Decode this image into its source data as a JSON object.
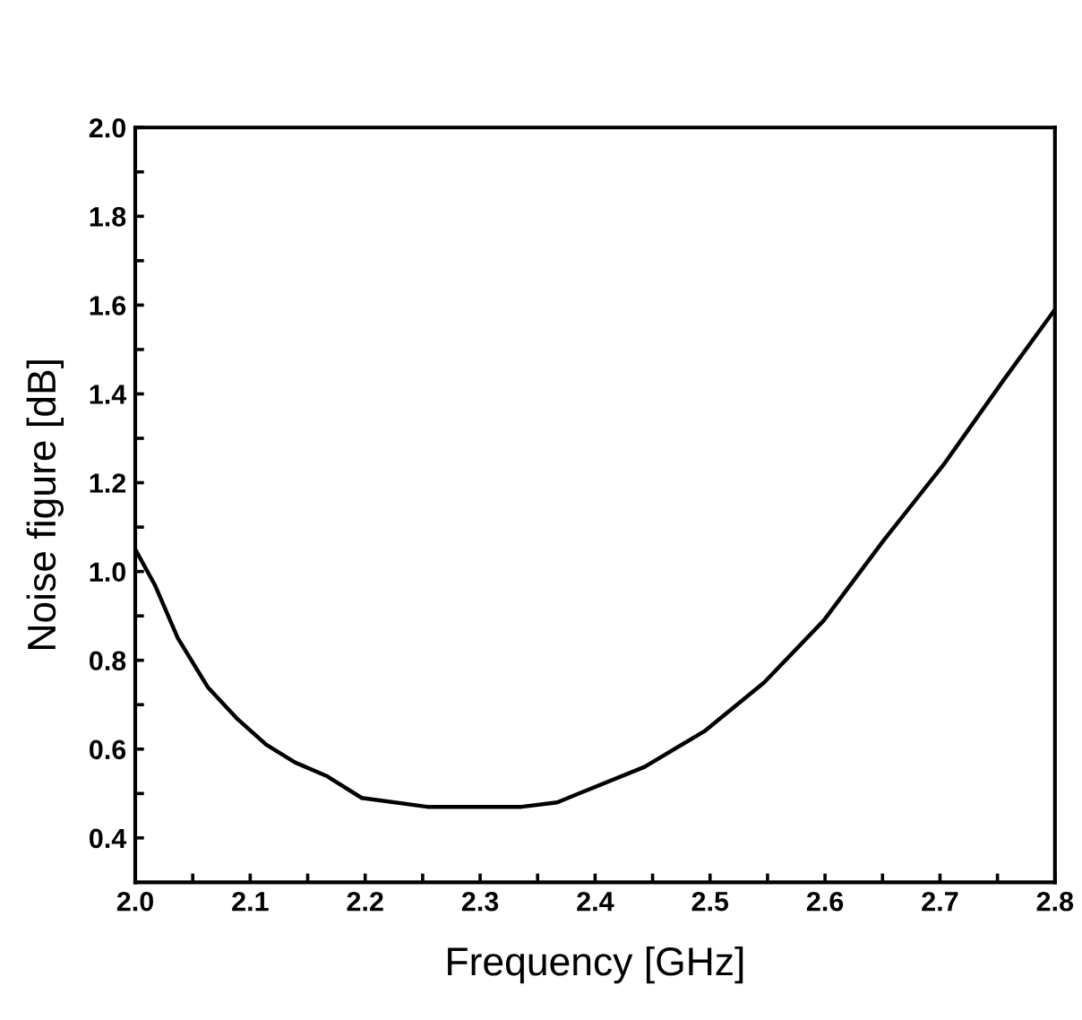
{
  "chart_data": {
    "type": "line",
    "xlabel": "Frequency [GHz]",
    "ylabel": "Noise figure [dB]",
    "xlim": [
      2.0,
      2.8
    ],
    "ylim": [
      0.3,
      2.0
    ],
    "xticks": [
      {
        "value": 2.0,
        "label": "2.0"
      },
      {
        "value": 2.05,
        "label": null
      },
      {
        "value": 2.1,
        "label": "2.1"
      },
      {
        "value": 2.15,
        "label": null
      },
      {
        "value": 2.2,
        "label": "2.2"
      },
      {
        "value": 2.25,
        "label": null
      },
      {
        "value": 2.3,
        "label": "2.3"
      },
      {
        "value": 2.35,
        "label": null
      },
      {
        "value": 2.4,
        "label": "2.4"
      },
      {
        "value": 2.45,
        "label": null
      },
      {
        "value": 2.5,
        "label": "2.5"
      },
      {
        "value": 2.55,
        "label": null
      },
      {
        "value": 2.6,
        "label": "2.6"
      },
      {
        "value": 2.65,
        "label": null
      },
      {
        "value": 2.7,
        "label": "2.7"
      },
      {
        "value": 2.75,
        "label": null
      },
      {
        "value": 2.8,
        "label": "2.8"
      }
    ],
    "yticks": [
      0.4,
      {
        "value": 0.5,
        "label": null
      },
      0.6,
      {
        "value": 0.7,
        "label": null
      },
      0.8,
      {
        "value": 0.9,
        "label": null
      },
      {
        "value": 1.0,
        "label": "1.0"
      },
      {
        "value": 1.1,
        "label": null
      },
      1.2,
      {
        "value": 1.3,
        "label": null
      },
      1.4,
      {
        "value": 1.5,
        "label": null
      },
      1.6,
      {
        "value": 1.7,
        "label": null
      },
      1.8,
      {
        "value": 1.9,
        "label": null
      },
      {
        "value": 2.0,
        "label": "2.0"
      }
    ],
    "grid": false,
    "legend": false,
    "marker": "none",
    "line_style": "solid",
    "series": [
      {
        "color": "#000000",
        "x": [
          2.0,
          2.017,
          2.037,
          2.063,
          2.088,
          2.114,
          2.139,
          2.166,
          2.197,
          2.254,
          2.336,
          2.367,
          2.386,
          2.443,
          2.495,
          2.547,
          2.599,
          2.651,
          2.703,
          2.755,
          2.8
        ],
        "values": [
          1.05,
          0.97,
          0.85,
          0.74,
          0.67,
          0.61,
          0.57,
          0.54,
          0.49,
          0.47,
          0.47,
          0.48,
          0.5,
          0.56,
          0.64,
          0.75,
          0.89,
          1.07,
          1.24,
          1.43,
          1.59
        ]
      }
    ]
  }
}
